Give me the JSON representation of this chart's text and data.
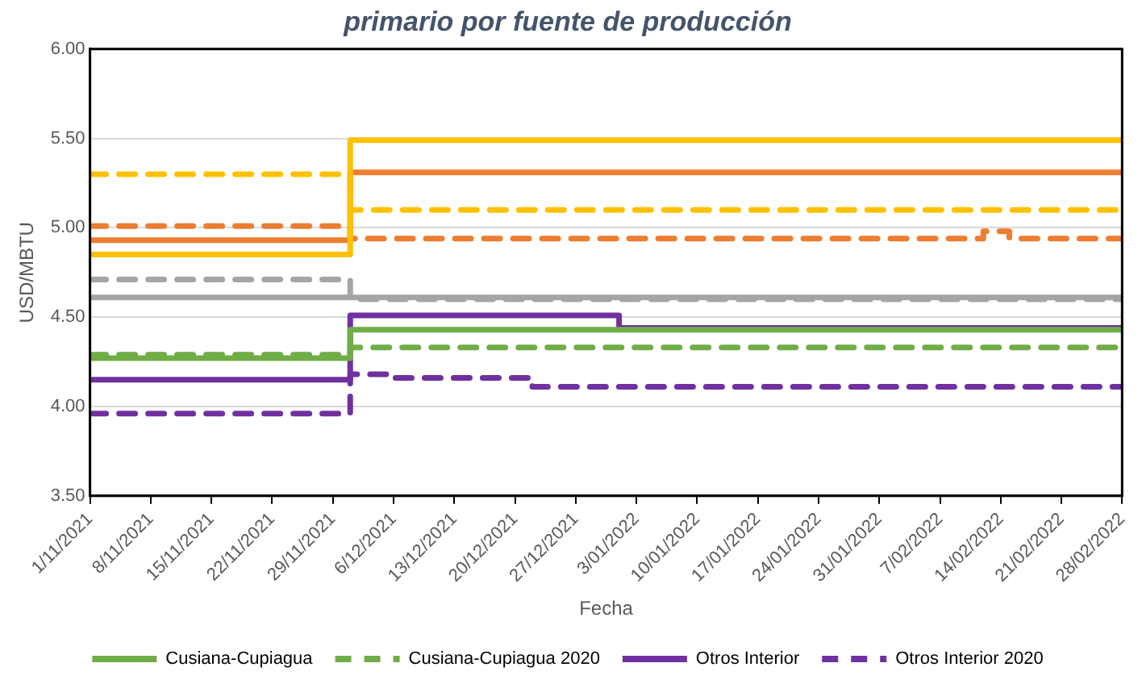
{
  "chart_data": {
    "type": "step",
    "title": "primario por fuente de producción",
    "xlabel": "Fecha",
    "ylabel": "USD/MBTU",
    "xlim": [
      "2021-11-01",
      "2022-02-28"
    ],
    "xticks": [
      {
        "value": "2021-11-01",
        "label": "1/11/2021"
      },
      {
        "value": "2021-11-08",
        "label": "8/11/2021"
      },
      {
        "value": "2021-11-15",
        "label": "15/11/2021"
      },
      {
        "value": "2021-11-22",
        "label": "22/11/2021"
      },
      {
        "value": "2021-11-29",
        "label": "29/11/2021"
      },
      {
        "value": "2021-12-06",
        "label": "6/12/2021"
      },
      {
        "value": "2021-12-13",
        "label": "13/12/2021"
      },
      {
        "value": "2021-12-20",
        "label": "20/12/2021"
      },
      {
        "value": "2021-12-27",
        "label": "27/12/2021"
      },
      {
        "value": "2022-01-03",
        "label": "3/01/2022"
      },
      {
        "value": "2022-01-10",
        "label": "10/01/2022"
      },
      {
        "value": "2022-01-17",
        "label": "17/01/2022"
      },
      {
        "value": "2022-01-24",
        "label": "24/01/2022"
      },
      {
        "value": "2022-01-31",
        "label": "31/01/2022"
      },
      {
        "value": "2022-02-07",
        "label": "7/02/2022"
      },
      {
        "value": "2022-02-14",
        "label": "14/02/2022"
      },
      {
        "value": "2022-02-21",
        "label": "21/02/2022"
      },
      {
        "value": "2022-02-28",
        "label": "28/02/2022"
      }
    ],
    "ylim": [
      3.5,
      6
    ],
    "yticks": [
      {
        "value": 3.5,
        "label": "3.50"
      },
      {
        "value": 4,
        "label": "4.00"
      },
      {
        "value": 4.5,
        "label": "4.50"
      },
      {
        "value": 5,
        "label": "5.00"
      },
      {
        "value": 5.5,
        "label": "5.50"
      },
      {
        "value": 6,
        "label": "6.00"
      }
    ],
    "grid": "y",
    "legend": "bottom",
    "marker": "none",
    "series": [
      {
        "color": "#ffc000",
        "line_style": "solid",
        "x": [
          "2021-11-01",
          "2021-11-30",
          "2021-12-01",
          "2022-02-28"
        ],
        "values": [
          4.85,
          4.85,
          5.49,
          5.49
        ]
      },
      {
        "color": "#ed7d31",
        "line_style": "solid",
        "x": [
          "2021-11-01",
          "2021-11-30",
          "2021-12-01",
          "2022-02-28"
        ],
        "values": [
          4.93,
          4.93,
          5.31,
          5.31
        ]
      },
      {
        "color": "#ffc000",
        "line_style": "dashed",
        "x": [
          "2021-11-01",
          "2021-11-30",
          "2021-12-01",
          "2022-02-28"
        ],
        "values": [
          5.3,
          5.3,
          5.1,
          5.1
        ]
      },
      {
        "color": "#ed7d31",
        "line_style": "dashed",
        "x": [
          "2021-11-01",
          "2021-11-30",
          "2021-12-01",
          "2022-02-11",
          "2022-02-12",
          "2022-02-14",
          "2022-02-15",
          "2022-02-28"
        ],
        "values": [
          5.01,
          5.01,
          4.94,
          4.94,
          4.98,
          4.98,
          4.94,
          4.94
        ]
      },
      {
        "color": "#a5a5a5",
        "line_style": "dashed",
        "x": [
          "2021-11-01",
          "2021-11-30",
          "2021-12-01",
          "2022-02-28"
        ],
        "values": [
          4.71,
          4.71,
          4.6,
          4.6
        ]
      },
      {
        "color": "#a5a5a5",
        "line_style": "solid",
        "x": [
          "2021-11-01",
          "2022-02-28"
        ],
        "values": [
          4.61,
          4.61
        ]
      },
      {
        "name": "Cusiana-Cupiagua",
        "color": "#70ad47",
        "line_style": "solid",
        "x": [
          "2021-11-01",
          "2021-11-30",
          "2021-12-01",
          "2022-02-28"
        ],
        "values": [
          4.27,
          4.27,
          4.43,
          4.43
        ]
      },
      {
        "name": "Cusiana-Cupiagua 2020",
        "color": "#70ad47",
        "line_style": "dashed",
        "x": [
          "2021-11-01",
          "2021-11-30",
          "2021-12-01",
          "2022-02-28"
        ],
        "values": [
          4.29,
          4.29,
          4.33,
          4.33
        ]
      },
      {
        "name": "Otros Interior",
        "color": "#7030a0",
        "line_style": "solid",
        "x": [
          "2021-11-01",
          "2021-11-30",
          "2021-12-01",
          "2021-12-31",
          "2022-01-01",
          "2022-02-28"
        ],
        "values": [
          4.15,
          4.15,
          4.51,
          4.51,
          4.44,
          4.44
        ]
      },
      {
        "name": "Otros Interior 2020",
        "color": "#7030a0",
        "line_style": "dashed",
        "x": [
          "2021-11-01",
          "2021-11-30",
          "2021-12-01",
          "2021-12-05",
          "2021-12-06",
          "2021-12-21",
          "2021-12-22",
          "2022-02-28"
        ],
        "values": [
          3.96,
          3.96,
          4.18,
          4.18,
          4.16,
          4.16,
          4.11,
          4.11
        ]
      }
    ]
  }
}
